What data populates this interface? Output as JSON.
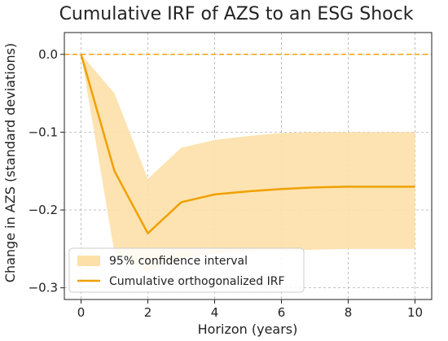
{
  "chart_data": {
    "type": "line",
    "title": "Cumulative IRF of AZS to an ESG Shock",
    "xlabel": "Horizon (years)",
    "ylabel": "Change in AZS (standard deviations)",
    "xlim": [
      -0.5,
      10.5
    ],
    "ylim": [
      -0.315,
      0.028
    ],
    "xticks": [
      0,
      2,
      4,
      6,
      8,
      10
    ],
    "yticks": [
      0.0,
      -0.1,
      -0.2,
      -0.3
    ],
    "xtick_labels": [
      "0",
      "2",
      "4",
      "6",
      "8",
      "10"
    ],
    "ytick_labels": [
      "0.0",
      "−0.1",
      "−0.2",
      "−0.3"
    ],
    "grid": true,
    "legend_position": "lower-left",
    "reference_line": {
      "y": 0.0,
      "style": "dashed",
      "color": "#f0a500"
    },
    "x": [
      0,
      1,
      2,
      3,
      4,
      5,
      6,
      7,
      8,
      9,
      10
    ],
    "series": [
      {
        "name": "Cumulative orthogonalized IRF",
        "kind": "line",
        "color": "#f0a000",
        "values": [
          0.0,
          -0.15,
          -0.23,
          -0.19,
          -0.18,
          -0.176,
          -0.173,
          -0.171,
          -0.17,
          -0.17,
          -0.17
        ]
      },
      {
        "name": "95% confidence interval",
        "kind": "band",
        "color": "#fde0a8",
        "lower": [
          0.0,
          -0.255,
          -0.28,
          -0.262,
          -0.256,
          -0.253,
          -0.252,
          -0.251,
          -0.25,
          -0.25,
          -0.25
        ],
        "upper": [
          0.0,
          -0.05,
          -0.16,
          -0.12,
          -0.11,
          -0.105,
          -0.101,
          -0.1,
          -0.1,
          -0.1,
          -0.1
        ]
      }
    ]
  }
}
